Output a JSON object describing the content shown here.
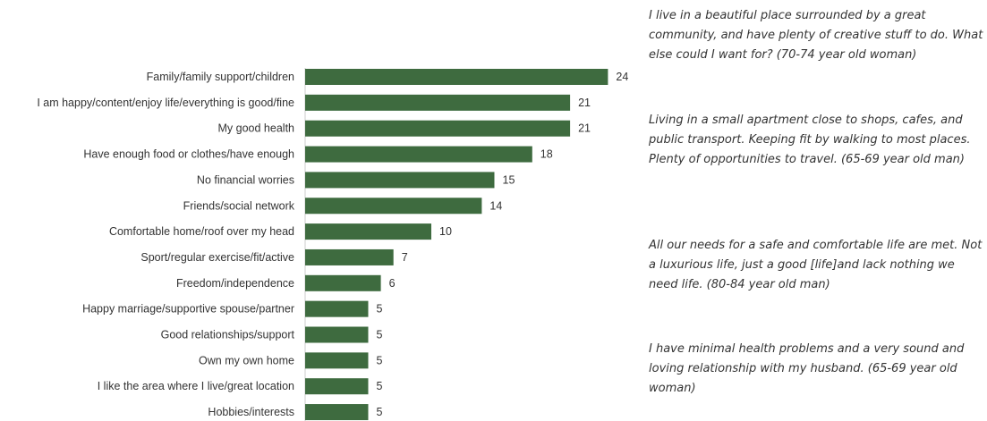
{
  "chart_data": {
    "type": "bar",
    "orientation": "horizontal",
    "categories": [
      "Family/family support/children",
      "I am happy/content/enjoy life/everything is good/fine",
      "My good health",
      "Have enough food or clothes/have enough",
      "No financial worries",
      "Friends/social network",
      "Comfortable home/roof over my head",
      "Sport/regular exercise/fit/active",
      "Freedom/independence",
      "Happy marriage/supportive spouse/partner",
      "Good relationships/support",
      "Own my own home",
      "I like the area where I live/great location",
      "Hobbies/interests"
    ],
    "values": [
      24,
      21,
      21,
      18,
      15,
      14,
      10,
      7,
      6,
      5,
      5,
      5,
      5,
      5
    ],
    "value_labels": [
      "24",
      "21",
      "21",
      "18",
      "15",
      "14",
      "10",
      "7",
      "6",
      "5",
      "5",
      "5",
      "5",
      "5"
    ],
    "xlim": [
      0,
      24
    ],
    "grid": false,
    "legend": "none",
    "bar_color": "#3e6b3f"
  },
  "quotes": [
    "I live in a beautiful place surrounded by a great community, and have plenty of creative stuff to do. What else could I want for? (70-74 year old woman)",
    "Living in a small apartment close to shops, cafes, and public transport. Keeping fit by walking to most places. Plenty of opportunities to travel. (65-69 year old man)",
    "All our needs for a safe and comfortable life are met. Not a luxurious life, just a good [life]and lack nothing we need life. (80-84 year old man)",
    "I have minimal health problems and a very sound and loving relationship with my husband. (65-69 year old woman)"
  ]
}
